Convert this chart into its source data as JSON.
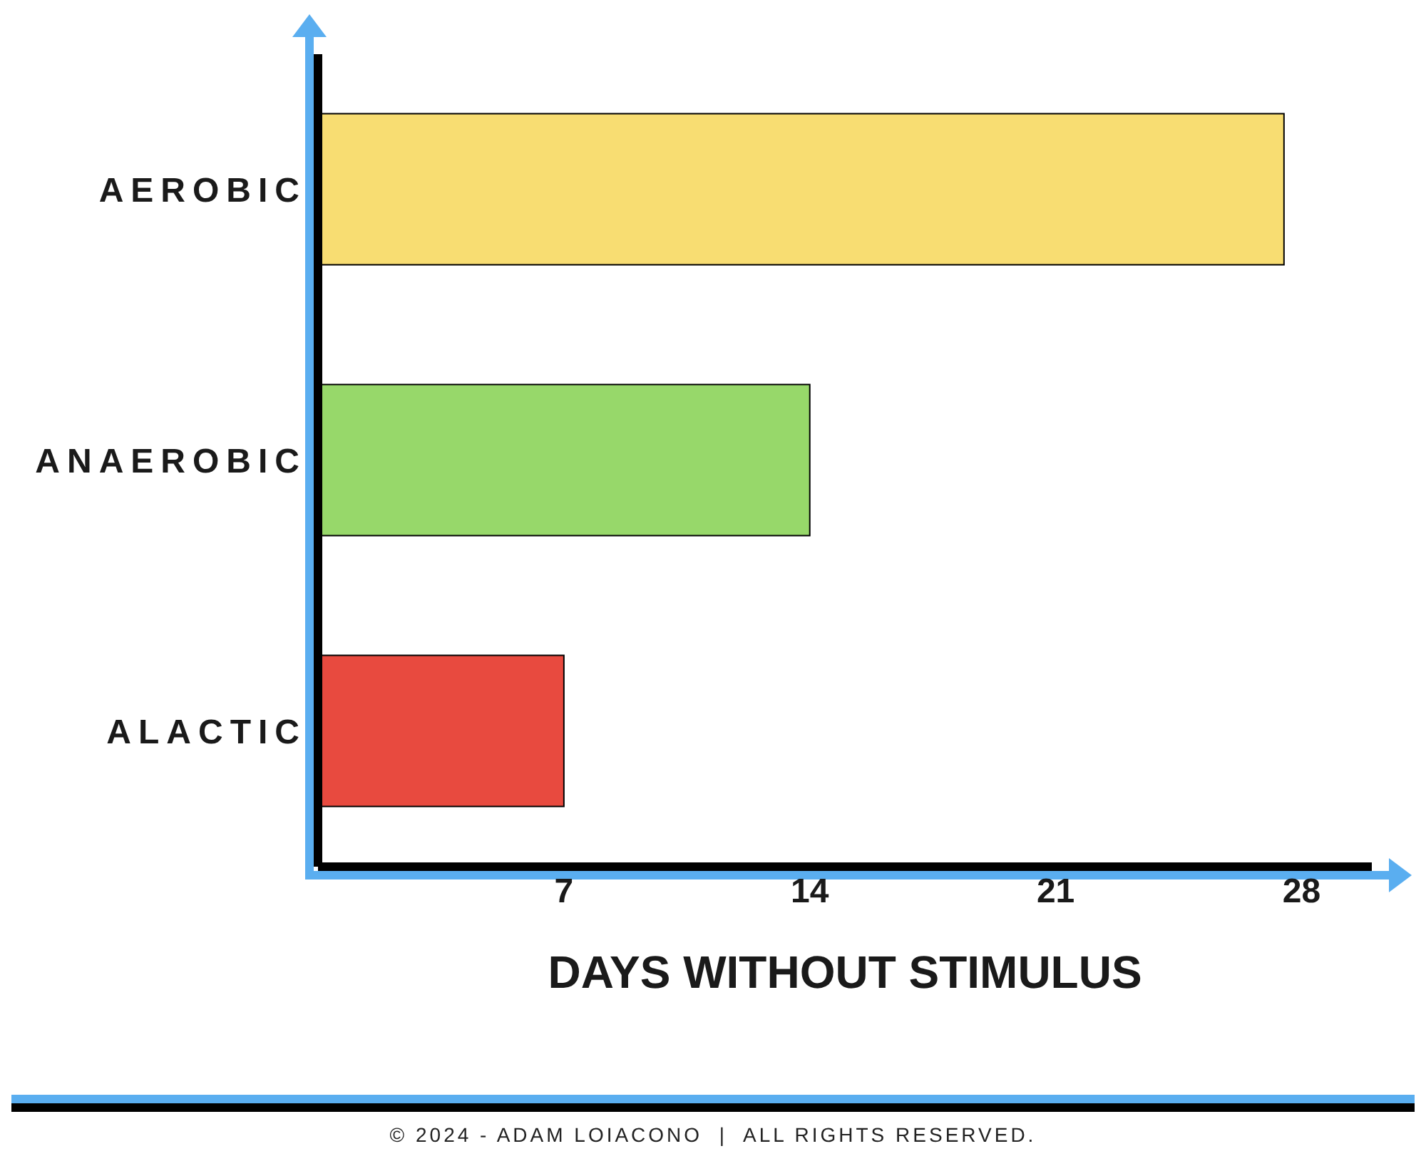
{
  "chart_data": {
    "type": "bar",
    "orientation": "horizontal",
    "categories": [
      "AEROBIC",
      "ANAEROBIC",
      "ALACTIC"
    ],
    "values": [
      27.5,
      14,
      7
    ],
    "colors": [
      "#f8dd72",
      "#97d86a",
      "#e84a3f"
    ],
    "xlim": [
      0,
      30
    ],
    "xticks": [
      7,
      14,
      21,
      28
    ],
    "xlabel": "DAYS WITHOUT STIMULUS",
    "annotations": [
      "© 2024 - ADAM LOIACONO  |  ALL RIGHTS RESERVED."
    ]
  }
}
